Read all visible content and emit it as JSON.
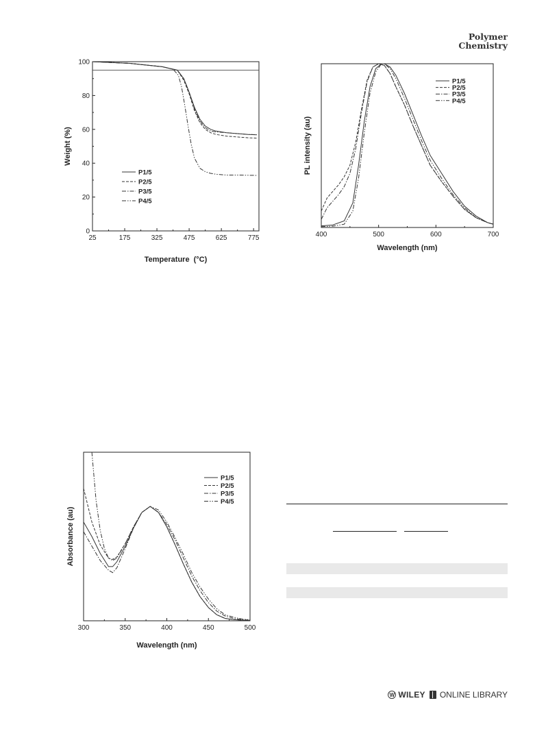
{
  "header": {
    "journal_line1": "Polymer",
    "journal_line2": "Chemistry"
  },
  "footer": {
    "publisher_mark": "W",
    "publisher": "WILEY",
    "library": "ONLINE LIBRARY"
  },
  "charts": {
    "tga": {
      "type": "line",
      "xlabel": "Temperature",
      "xlabel_unit": "(°C)",
      "ylabel": "Weight (%)",
      "xlim": [
        25,
        800
      ],
      "ylim": [
        0,
        100
      ],
      "xticks": [
        25,
        175,
        325,
        475,
        625,
        775
      ],
      "yticks": [
        0,
        20,
        40,
        60,
        80,
        100
      ],
      "reference_line_y": 95,
      "legend": {
        "position": "lower-left"
      },
      "series": [
        {
          "name": "P1/5",
          "dash": "",
          "x": [
            25,
            200,
            350,
            420,
            450,
            475,
            500,
            525,
            550,
            575,
            600,
            650,
            700,
            750,
            790
          ],
          "y": [
            100,
            99,
            97,
            95,
            90,
            82,
            73,
            66,
            62,
            60,
            59,
            58,
            57.5,
            57,
            56.8
          ]
        },
        {
          "name": "P2/5",
          "dash": "4,2",
          "x": [
            25,
            200,
            350,
            420,
            450,
            475,
            500,
            525,
            550,
            575,
            600,
            650,
            700,
            750,
            790
          ],
          "y": [
            100,
            99,
            97,
            95,
            89,
            81,
            71,
            64,
            60,
            58,
            57,
            56,
            55.5,
            55,
            54.8
          ]
        },
        {
          "name": "P3/5",
          "dash": "6,2,1.5,2",
          "x": [
            25,
            200,
            350,
            420,
            450,
            475,
            500,
            525,
            550,
            575,
            600,
            650,
            700,
            750,
            790
          ],
          "y": [
            100,
            99,
            97,
            95,
            90,
            82,
            72,
            65,
            61,
            59,
            58.5,
            58,
            57.5,
            57,
            56.9
          ]
        },
        {
          "name": "P4/5",
          "dash": "6,2,1.5,2,1.5,2",
          "x": [
            25,
            200,
            350,
            400,
            425,
            440,
            455,
            470,
            485,
            500,
            525,
            550,
            575,
            600,
            650,
            700,
            790
          ],
          "y": [
            100,
            99,
            97,
            95.5,
            92,
            85,
            74,
            62,
            51,
            43,
            37,
            35,
            34,
            33.5,
            33,
            33,
            32.8
          ]
        }
      ]
    },
    "pl": {
      "type": "line",
      "xlabel": "Wavelength (nm)",
      "ylabel": "PL intensity (au)",
      "xlim": [
        400,
        700
      ],
      "ylim": [
        0,
        1
      ],
      "xticks": [
        400,
        500,
        600,
        700
      ],
      "yticks": [],
      "legend": {
        "position": "top-right"
      },
      "series": [
        {
          "name": "P1/5",
          "dash": "",
          "x": [
            400,
            420,
            440,
            455,
            465,
            475,
            485,
            495,
            505,
            510,
            520,
            530,
            545,
            560,
            575,
            590,
            610,
            630,
            650,
            670,
            690,
            700
          ],
          "y": [
            0.01,
            0.015,
            0.04,
            0.15,
            0.38,
            0.65,
            0.86,
            0.97,
            1.0,
            1.0,
            0.98,
            0.93,
            0.82,
            0.69,
            0.56,
            0.44,
            0.33,
            0.22,
            0.13,
            0.07,
            0.03,
            0.02
          ]
        },
        {
          "name": "P2/5",
          "dash": "4,2",
          "x": [
            400,
            410,
            420,
            430,
            440,
            450,
            460,
            470,
            480,
            490,
            500,
            510,
            520,
            530,
            545,
            560,
            575,
            590,
            610,
            630,
            650,
            670,
            690,
            700
          ],
          "y": [
            0.1,
            0.18,
            0.22,
            0.26,
            0.31,
            0.38,
            0.52,
            0.72,
            0.9,
            0.98,
            1.0,
            0.99,
            0.94,
            0.86,
            0.75,
            0.62,
            0.5,
            0.38,
            0.28,
            0.19,
            0.11,
            0.06,
            0.03,
            0.02
          ]
        },
        {
          "name": "P3/5",
          "dash": "6,2,1.5,2",
          "x": [
            400,
            410,
            420,
            430,
            440,
            450,
            460,
            470,
            480,
            490,
            500,
            510,
            520,
            530,
            545,
            560,
            575,
            590,
            610,
            630,
            650,
            670,
            690,
            700
          ],
          "y": [
            0.05,
            0.12,
            0.16,
            0.2,
            0.25,
            0.33,
            0.48,
            0.7,
            0.89,
            0.98,
            1.0,
            0.99,
            0.94,
            0.86,
            0.75,
            0.62,
            0.5,
            0.38,
            0.28,
            0.19,
            0.11,
            0.06,
            0.03,
            0.02
          ]
        },
        {
          "name": "P4/5",
          "dash": "6,2,1.5,2,1.5,2",
          "x": [
            400,
            420,
            440,
            455,
            465,
            475,
            485,
            495,
            505,
            510,
            520,
            530,
            545,
            560,
            575,
            590,
            610,
            630,
            650,
            670,
            690,
            700
          ],
          "y": [
            0.005,
            0.008,
            0.02,
            0.1,
            0.3,
            0.58,
            0.82,
            0.95,
            1.0,
            1.0,
            0.97,
            0.91,
            0.79,
            0.66,
            0.53,
            0.41,
            0.3,
            0.2,
            0.12,
            0.06,
            0.03,
            0.02
          ]
        }
      ]
    },
    "abs": {
      "type": "line",
      "xlabel": "Wavelength (nm)",
      "ylabel": "Absorbance (au)",
      "xlim": [
        300,
        500
      ],
      "ylim": [
        0,
        1.4
      ],
      "xticks": [
        300,
        350,
        400,
        450,
        500
      ],
      "yticks": [],
      "legend": {
        "position": "top-right"
      },
      "series": [
        {
          "name": "P1/5",
          "dash": "",
          "x": [
            300,
            310,
            320,
            330,
            335,
            340,
            350,
            360,
            370,
            380,
            390,
            400,
            410,
            420,
            430,
            440,
            450,
            460,
            470,
            480,
            490,
            500
          ],
          "y": [
            0.82,
            0.7,
            0.56,
            0.45,
            0.45,
            0.49,
            0.62,
            0.77,
            0.9,
            0.95,
            0.9,
            0.78,
            0.63,
            0.47,
            0.32,
            0.2,
            0.11,
            0.05,
            0.02,
            0.01,
            0.005,
            0.003
          ]
        },
        {
          "name": "P2/5",
          "dash": "4,2",
          "x": [
            300,
            310,
            320,
            330,
            335,
            340,
            350,
            360,
            370,
            380,
            390,
            400,
            410,
            420,
            430,
            440,
            450,
            460,
            470,
            480,
            490,
            500
          ],
          "y": [
            1.1,
            0.82,
            0.63,
            0.52,
            0.51,
            0.53,
            0.64,
            0.78,
            0.9,
            0.95,
            0.9,
            0.78,
            0.63,
            0.47,
            0.32,
            0.2,
            0.11,
            0.05,
            0.02,
            0.01,
            0.005,
            0.003
          ]
        },
        {
          "name": "P3/5",
          "dash": "6,2,1.5,2",
          "x": [
            300,
            310,
            320,
            330,
            335,
            340,
            350,
            360,
            370,
            380,
            390,
            400,
            410,
            420,
            430,
            440,
            450,
            460,
            470,
            480,
            490,
            500
          ],
          "y": [
            0.74,
            0.62,
            0.5,
            0.42,
            0.4,
            0.44,
            0.6,
            0.77,
            0.9,
            0.95,
            0.9,
            0.8,
            0.67,
            0.52,
            0.37,
            0.25,
            0.15,
            0.08,
            0.04,
            0.02,
            0.01,
            0.005
          ]
        },
        {
          "name": "P4/5",
          "dash": "6,2,1.5,2,1.5,2",
          "x": [
            310,
            315,
            320,
            325,
            330,
            335,
            340,
            350,
            360,
            370,
            380,
            390,
            400,
            410,
            420,
            430,
            440,
            450,
            460,
            470,
            480,
            490,
            500
          ],
          "y": [
            1.4,
            1.0,
            0.75,
            0.6,
            0.52,
            0.5,
            0.52,
            0.64,
            0.78,
            0.9,
            0.95,
            0.92,
            0.82,
            0.69,
            0.55,
            0.4,
            0.28,
            0.18,
            0.1,
            0.05,
            0.03,
            0.015,
            0.008
          ]
        }
      ]
    }
  }
}
